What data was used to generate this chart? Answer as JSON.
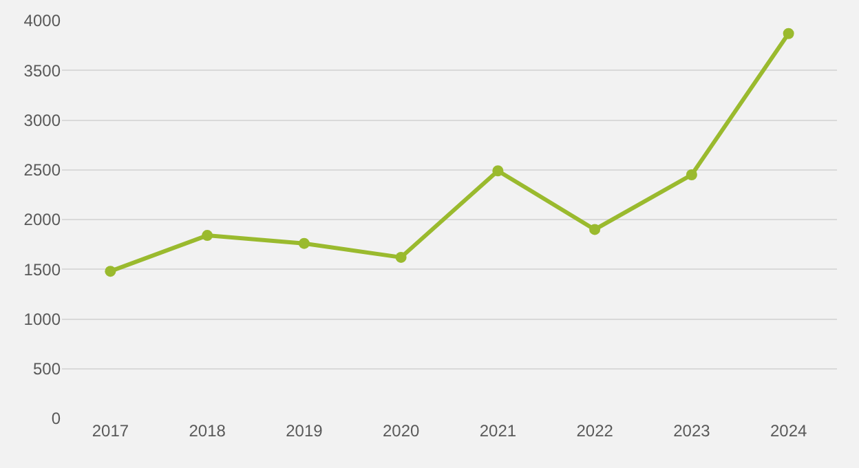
{
  "chart_data": {
    "type": "line",
    "categories": [
      "2017",
      "2018",
      "2019",
      "2020",
      "2021",
      "2022",
      "2023",
      "2024"
    ],
    "series": [
      {
        "color": "#9aba2e",
        "values": [
          1480,
          1840,
          1760,
          1620,
          2490,
          1900,
          2450,
          3870
        ]
      }
    ],
    "ylim": [
      0,
      4000
    ],
    "yticks": [
      0,
      500,
      1000,
      1500,
      2000,
      2500,
      3000,
      3500,
      4000
    ],
    "grid": "y",
    "marker": "circle",
    "line_style": "solid",
    "legend": false
  }
}
